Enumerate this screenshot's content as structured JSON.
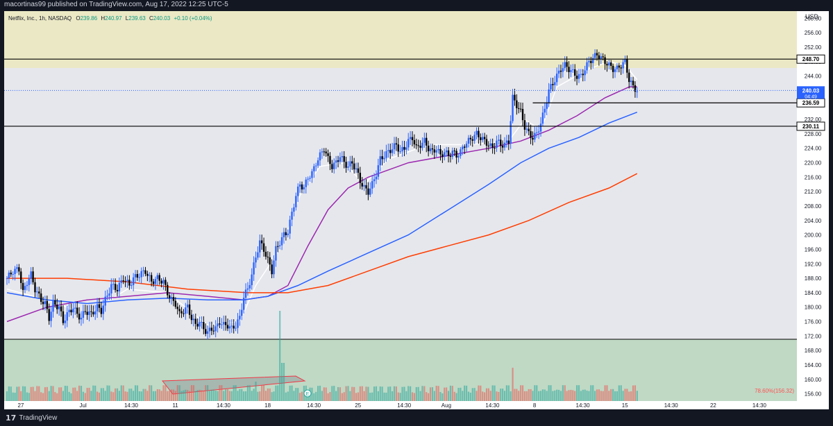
{
  "header": {
    "published_text": "macortinas99 published on TradingView.com, Aug 17, 2022 12:25 UTC-5"
  },
  "footer": {
    "logo_text": "TradingView",
    "logo_mark": "17"
  },
  "chart_data": {
    "type": "candlestick",
    "symbol_line": {
      "name": "Netflix, Inc., 1h, NASDAQ",
      "o_label": "O",
      "o_value": "239.86",
      "h_label": "H",
      "h_value": "240.97",
      "l_label": "L",
      "l_value": "239.63",
      "c_label": "C",
      "c_value": "240.03",
      "change": "+0.10 (+0.04%)"
    },
    "currency": "USD",
    "ylim": [
      154,
      262
    ],
    "y_ticks": [
      "260.00",
      "256.00",
      "252.00",
      "248.00",
      "244.00",
      "240.00",
      "236.00",
      "232.00",
      "228.00",
      "224.00",
      "220.00",
      "216.00",
      "212.00",
      "208.00",
      "204.00",
      "200.00",
      "196.00",
      "192.00",
      "188.00",
      "184.00",
      "180.00",
      "176.00",
      "172.00",
      "168.00",
      "164.00",
      "160.00",
      "156.00"
    ],
    "x_ticks": [
      {
        "label": "27",
        "bar": 0
      },
      {
        "label": "Jul",
        "bar": 31
      },
      {
        "label": "14:30",
        "bar": 55
      },
      {
        "label": "11",
        "bar": 77
      },
      {
        "label": "14:30",
        "bar": 101
      },
      {
        "label": "18",
        "bar": 123
      },
      {
        "label": "14:30",
        "bar": 146
      },
      {
        "label": "25",
        "bar": 168
      },
      {
        "label": "14:30",
        "bar": 191
      },
      {
        "label": "Aug",
        "bar": 212
      },
      {
        "label": "14:30",
        "bar": 235
      },
      {
        "label": "8",
        "bar": 256
      },
      {
        "label": "14:30",
        "bar": 280
      },
      {
        "label": "15",
        "bar": 301
      },
      {
        "label": "14:30",
        "bar": 324
      },
      {
        "label": "22",
        "bar": 345
      },
      {
        "label": "14:30",
        "bar": 368
      }
    ],
    "total_bars": 395,
    "price_points": [
      {
        "bar": 0,
        "price": 188
      },
      {
        "bar": 3,
        "price": 190
      },
      {
        "bar": 6,
        "price": 190.5
      },
      {
        "bar": 8,
        "price": 184
      },
      {
        "bar": 10,
        "price": 187
      },
      {
        "bar": 12,
        "price": 189
      },
      {
        "bar": 14,
        "price": 185
      },
      {
        "bar": 17,
        "price": 182
      },
      {
        "bar": 19,
        "price": 181
      },
      {
        "bar": 21,
        "price": 177
      },
      {
        "bar": 23,
        "price": 181
      },
      {
        "bar": 26,
        "price": 180
      },
      {
        "bar": 28,
        "price": 176
      },
      {
        "bar": 30,
        "price": 178
      },
      {
        "bar": 33,
        "price": 180
      },
      {
        "bar": 35,
        "price": 178
      },
      {
        "bar": 37,
        "price": 177
      },
      {
        "bar": 39,
        "price": 179
      },
      {
        "bar": 42,
        "price": 178
      },
      {
        "bar": 45,
        "price": 180
      },
      {
        "bar": 47,
        "price": 179
      },
      {
        "bar": 49,
        "price": 182
      },
      {
        "bar": 52,
        "price": 186
      },
      {
        "bar": 55,
        "price": 185
      },
      {
        "bar": 58,
        "price": 188
      },
      {
        "bar": 61,
        "price": 186
      },
      {
        "bar": 63,
        "price": 188
      },
      {
        "bar": 66,
        "price": 189
      },
      {
        "bar": 69,
        "price": 190
      },
      {
        "bar": 72,
        "price": 187
      },
      {
        "bar": 75,
        "price": 188
      },
      {
        "bar": 78,
        "price": 187
      },
      {
        "bar": 80,
        "price": 184
      },
      {
        "bar": 82,
        "price": 182
      },
      {
        "bar": 84,
        "price": 181
      },
      {
        "bar": 86,
        "price": 178
      },
      {
        "bar": 88,
        "price": 179
      },
      {
        "bar": 90,
        "price": 180
      },
      {
        "bar": 92,
        "price": 177
      },
      {
        "bar": 94,
        "price": 175
      },
      {
        "bar": 96,
        "price": 176
      },
      {
        "bar": 98,
        "price": 174
      },
      {
        "bar": 100,
        "price": 173
      },
      {
        "bar": 102,
        "price": 174
      },
      {
        "bar": 104,
        "price": 174
      },
      {
        "bar": 106,
        "price": 176
      },
      {
        "bar": 108,
        "price": 175
      },
      {
        "bar": 110,
        "price": 175
      },
      {
        "bar": 112,
        "price": 174
      },
      {
        "bar": 114,
        "price": 175
      },
      {
        "bar": 116,
        "price": 177
      },
      {
        "bar": 118,
        "price": 183
      },
      {
        "bar": 120,
        "price": 185
      },
      {
        "bar": 122,
        "price": 189
      },
      {
        "bar": 124,
        "price": 194
      },
      {
        "bar": 126,
        "price": 198
      },
      {
        "bar": 128,
        "price": 196
      },
      {
        "bar": 130,
        "price": 193
      },
      {
        "bar": 132,
        "price": 190
      },
      {
        "bar": 134,
        "price": 196
      },
      {
        "bar": 136,
        "price": 198
      },
      {
        "bar": 138,
        "price": 200
      },
      {
        "bar": 140,
        "price": 201
      },
      {
        "bar": 142,
        "price": 206
      },
      {
        "bar": 144,
        "price": 211
      },
      {
        "bar": 146,
        "price": 214
      },
      {
        "bar": 148,
        "price": 213
      },
      {
        "bar": 150,
        "price": 216
      },
      {
        "bar": 152,
        "price": 217
      },
      {
        "bar": 154,
        "price": 220
      },
      {
        "bar": 156,
        "price": 222
      },
      {
        "bar": 158,
        "price": 224
      },
      {
        "bar": 160,
        "price": 221
      },
      {
        "bar": 162,
        "price": 219
      },
      {
        "bar": 164,
        "price": 220
      },
      {
        "bar": 166,
        "price": 222
      },
      {
        "bar": 168,
        "price": 220
      },
      {
        "bar": 170,
        "price": 219
      },
      {
        "bar": 172,
        "price": 220
      },
      {
        "bar": 174,
        "price": 218
      },
      {
        "bar": 176,
        "price": 215
      },
      {
        "bar": 178,
        "price": 213
      },
      {
        "bar": 180,
        "price": 212
      },
      {
        "bar": 182,
        "price": 214
      },
      {
        "bar": 184,
        "price": 217
      },
      {
        "bar": 186,
        "price": 221
      },
      {
        "bar": 188,
        "price": 222
      },
      {
        "bar": 190,
        "price": 223
      },
      {
        "bar": 192,
        "price": 224
      },
      {
        "bar": 194,
        "price": 225
      },
      {
        "bar": 196,
        "price": 223
      },
      {
        "bar": 198,
        "price": 224
      },
      {
        "bar": 200,
        "price": 226
      },
      {
        "bar": 202,
        "price": 227
      },
      {
        "bar": 204,
        "price": 224
      },
      {
        "bar": 206,
        "price": 225
      },
      {
        "bar": 208,
        "price": 226
      },
      {
        "bar": 210,
        "price": 224
      },
      {
        "bar": 212,
        "price": 223
      },
      {
        "bar": 214,
        "price": 224
      },
      {
        "bar": 216,
        "price": 222
      },
      {
        "bar": 218,
        "price": 223
      },
      {
        "bar": 220,
        "price": 222
      },
      {
        "bar": 222,
        "price": 223
      },
      {
        "bar": 224,
        "price": 222
      },
      {
        "bar": 226,
        "price": 223
      },
      {
        "bar": 228,
        "price": 225
      },
      {
        "bar": 230,
        "price": 226
      },
      {
        "bar": 232,
        "price": 227
      },
      {
        "bar": 234,
        "price": 228
      },
      {
        "bar": 236,
        "price": 227
      },
      {
        "bar": 238,
        "price": 226
      },
      {
        "bar": 240,
        "price": 225
      },
      {
        "bar": 242,
        "price": 224
      },
      {
        "bar": 244,
        "price": 226
      },
      {
        "bar": 246,
        "price": 225
      },
      {
        "bar": 248,
        "price": 225
      },
      {
        "bar": 250,
        "price": 226
      },
      {
        "bar": 252,
        "price": 238
      },
      {
        "bar": 254,
        "price": 236
      },
      {
        "bar": 256,
        "price": 234
      },
      {
        "bar": 258,
        "price": 230
      },
      {
        "bar": 260,
        "price": 228
      },
      {
        "bar": 262,
        "price": 227
      },
      {
        "bar": 264,
        "price": 228
      },
      {
        "bar": 266,
        "price": 231
      },
      {
        "bar": 268,
        "price": 235
      },
      {
        "bar": 270,
        "price": 240
      },
      {
        "bar": 272,
        "price": 242
      },
      {
        "bar": 274,
        "price": 244
      },
      {
        "bar": 276,
        "price": 246
      },
      {
        "bar": 278,
        "price": 247
      },
      {
        "bar": 280,
        "price": 246
      },
      {
        "bar": 282,
        "price": 245
      },
      {
        "bar": 284,
        "price": 244
      },
      {
        "bar": 286,
        "price": 244
      },
      {
        "bar": 288,
        "price": 246
      },
      {
        "bar": 290,
        "price": 248
      },
      {
        "bar": 292,
        "price": 249
      },
      {
        "bar": 294,
        "price": 250
      },
      {
        "bar": 296,
        "price": 249
      },
      {
        "bar": 298,
        "price": 248
      },
      {
        "bar": 300,
        "price": 247
      },
      {
        "bar": 302,
        "price": 246
      },
      {
        "bar": 304,
        "price": 246
      },
      {
        "bar": 306,
        "price": 247
      },
      {
        "bar": 308,
        "price": 248
      },
      {
        "bar": 310,
        "price": 243
      },
      {
        "bar": 312,
        "price": 241
      },
      {
        "bar": 314,
        "price": 240
      }
    ],
    "series": [
      {
        "name": "",
        "color": "#ffffff",
        "points": [
          {
            "bar": 0,
            "price": 185
          },
          {
            "bar": 20,
            "price": 182
          },
          {
            "bar": 40,
            "price": 178
          },
          {
            "bar": 60,
            "price": 185
          },
          {
            "bar": 80,
            "price": 184
          },
          {
            "bar": 100,
            "price": 175
          },
          {
            "bar": 116,
            "price": 176
          },
          {
            "bar": 124,
            "price": 186
          },
          {
            "bar": 130,
            "price": 191
          },
          {
            "bar": 138,
            "price": 198
          },
          {
            "bar": 146,
            "price": 211
          },
          {
            "bar": 156,
            "price": 219
          },
          {
            "bar": 168,
            "price": 220
          },
          {
            "bar": 178,
            "price": 214
          },
          {
            "bar": 190,
            "price": 221
          },
          {
            "bar": 210,
            "price": 225
          },
          {
            "bar": 230,
            "price": 225
          },
          {
            "bar": 250,
            "price": 226
          },
          {
            "bar": 258,
            "price": 232
          },
          {
            "bar": 266,
            "price": 229
          },
          {
            "bar": 274,
            "price": 241
          },
          {
            "bar": 290,
            "price": 246
          },
          {
            "bar": 300,
            "price": 248
          },
          {
            "bar": 308,
            "price": 247
          },
          {
            "bar": 314,
            "price": 243
          }
        ]
      },
      {
        "name": "",
        "color": "#9c27b0",
        "points": [
          {
            "bar": 0,
            "price": 176
          },
          {
            "bar": 20,
            "price": 180
          },
          {
            "bar": 40,
            "price": 182
          },
          {
            "bar": 60,
            "price": 183
          },
          {
            "bar": 80,
            "price": 184
          },
          {
            "bar": 100,
            "price": 183
          },
          {
            "bar": 118,
            "price": 182
          },
          {
            "bar": 130,
            "price": 183
          },
          {
            "bar": 140,
            "price": 186
          },
          {
            "bar": 150,
            "price": 197
          },
          {
            "bar": 160,
            "price": 207
          },
          {
            "bar": 170,
            "price": 213
          },
          {
            "bar": 180,
            "price": 216
          },
          {
            "bar": 200,
            "price": 220
          },
          {
            "bar": 220,
            "price": 222
          },
          {
            "bar": 240,
            "price": 224
          },
          {
            "bar": 256,
            "price": 226
          },
          {
            "bar": 270,
            "price": 229
          },
          {
            "bar": 284,
            "price": 233
          },
          {
            "bar": 298,
            "price": 238
          },
          {
            "bar": 310,
            "price": 241
          },
          {
            "bar": 314,
            "price": 241
          }
        ]
      },
      {
        "name": "",
        "color": "#2962ff",
        "points": [
          {
            "bar": 0,
            "price": 184
          },
          {
            "bar": 20,
            "price": 182
          },
          {
            "bar": 40,
            "price": 181
          },
          {
            "bar": 60,
            "price": 182
          },
          {
            "bar": 80,
            "price": 182.5
          },
          {
            "bar": 100,
            "price": 182
          },
          {
            "bar": 118,
            "price": 182
          },
          {
            "bar": 130,
            "price": 183
          },
          {
            "bar": 145,
            "price": 186
          },
          {
            "bar": 160,
            "price": 190
          },
          {
            "bar": 180,
            "price": 195
          },
          {
            "bar": 200,
            "price": 200
          },
          {
            "bar": 220,
            "price": 207
          },
          {
            "bar": 240,
            "price": 214
          },
          {
            "bar": 256,
            "price": 220
          },
          {
            "bar": 270,
            "price": 224
          },
          {
            "bar": 285,
            "price": 227
          },
          {
            "bar": 300,
            "price": 231
          },
          {
            "bar": 314,
            "price": 234
          }
        ]
      },
      {
        "name": "",
        "color": "#ff3d00",
        "points": [
          {
            "bar": 0,
            "price": 188
          },
          {
            "bar": 30,
            "price": 188
          },
          {
            "bar": 60,
            "price": 187
          },
          {
            "bar": 90,
            "price": 185
          },
          {
            "bar": 120,
            "price": 184
          },
          {
            "bar": 140,
            "price": 184
          },
          {
            "bar": 160,
            "price": 186
          },
          {
            "bar": 180,
            "price": 190
          },
          {
            "bar": 200,
            "price": 194
          },
          {
            "bar": 220,
            "price": 197
          },
          {
            "bar": 240,
            "price": 200
          },
          {
            "bar": 260,
            "price": 204
          },
          {
            "bar": 280,
            "price": 209
          },
          {
            "bar": 300,
            "price": 213
          },
          {
            "bar": 314,
            "price": 217
          }
        ]
      }
    ],
    "horizontal_lines": [
      {
        "price": 248.7,
        "label": "248.70"
      },
      {
        "price": 236.59,
        "label": "236.59"
      },
      {
        "price": 230.11,
        "label": "230.11"
      }
    ],
    "current_price": {
      "price": 240.03,
      "label": "240.03",
      "timer": "04:49"
    },
    "volume_pct_label": "78.60%(156.32)"
  }
}
